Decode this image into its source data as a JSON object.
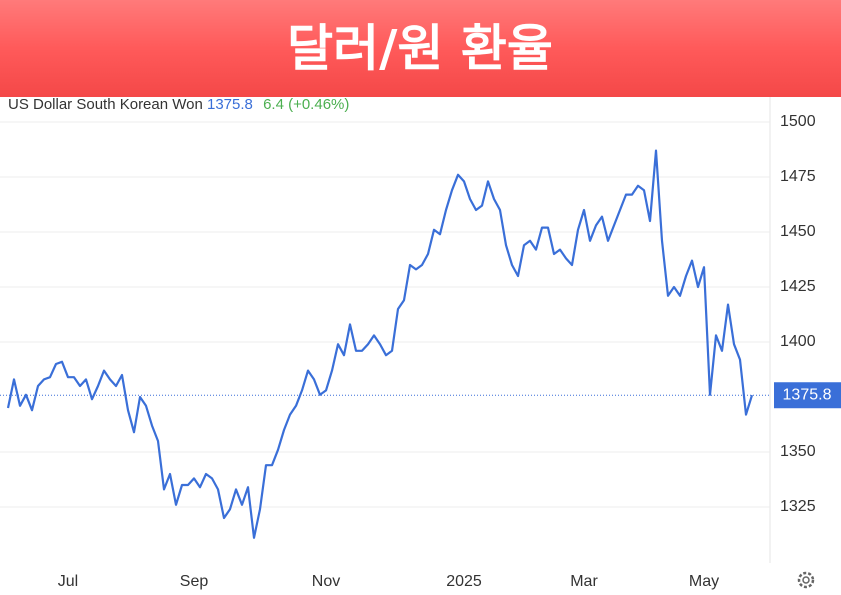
{
  "chart_data": {
    "type": "line",
    "title": "달러/원 환율",
    "last_value": 1375.8,
    "change_label": "6.4 (+0.46%)",
    "categories": [
      null,
      null,
      null,
      null,
      null,
      null,
      null,
      null,
      null,
      null,
      "Jul",
      null,
      null,
      null,
      null,
      null,
      null,
      null,
      null,
      null,
      null,
      null,
      null,
      null,
      null,
      null,
      null,
      null,
      null,
      null,
      null,
      "Sep",
      null,
      null,
      null,
      null,
      null,
      null,
      null,
      null,
      null,
      null,
      null,
      null,
      null,
      null,
      null,
      null,
      null,
      null,
      null,
      null,
      null,
      "Nov",
      null,
      null,
      null,
      null,
      null,
      null,
      null,
      null,
      null,
      null,
      null,
      null,
      null,
      null,
      null,
      null,
      null,
      null,
      null,
      null,
      null,
      null,
      "2025",
      null,
      null,
      null,
      null,
      null,
      null,
      null,
      null,
      null,
      null,
      null,
      null,
      null,
      null,
      null,
      null,
      null,
      null,
      null,
      "Mar",
      null,
      null,
      null,
      null,
      null,
      null,
      null,
      null,
      null,
      null,
      null,
      null,
      null,
      null,
      null,
      null,
      null,
      null,
      null,
      "May",
      null,
      null,
      null,
      null,
      null,
      null,
      null,
      null
    ],
    "series": [
      {
        "name": "US Dollar South Korean Won",
        "color": "#3a6fd8",
        "values": [
          1370,
          1383,
          1371,
          1376,
          1369,
          1380,
          1383,
          1384,
          1390,
          1391,
          1384,
          1384,
          1380,
          1383,
          1374,
          1380,
          1387,
          1383,
          1380,
          1385,
          1369,
          1359,
          1375,
          1371,
          1362,
          1355,
          1333,
          1340,
          1326,
          1335,
          1335,
          1338,
          1334,
          1340,
          1338,
          1333,
          1320,
          1324,
          1333,
          1326,
          1334,
          1311,
          1324,
          1344,
          1344,
          1351,
          1360,
          1367,
          1371,
          1378,
          1387,
          1383,
          1376,
          1378,
          1387,
          1399,
          1394,
          1408,
          1396,
          1396,
          1399,
          1403,
          1399,
          1394,
          1396,
          1415,
          1419,
          1435,
          1433,
          1435,
          1440,
          1451,
          1449,
          1460,
          1469,
          1476,
          1473,
          1465,
          1460,
          1462,
          1473,
          1465,
          1460,
          1444,
          1435,
          1430,
          1444,
          1446,
          1442,
          1452,
          1452,
          1440,
          1442,
          1438,
          1435,
          1451,
          1460,
          1446,
          1453,
          1457,
          1446,
          1453,
          1460,
          1467,
          1467,
          1471,
          1469,
          1455,
          1487,
          1446,
          1421,
          1425,
          1421,
          1430,
          1437,
          1425,
          1434,
          1376,
          1403,
          1396,
          1417,
          1399,
          1392,
          1367,
          1375.8
        ]
      }
    ],
    "ylim": [
      1300,
      1510
    ],
    "yticks": [
      1325,
      1350,
      1400,
      1425,
      1450,
      1475,
      1500
    ],
    "grid": true
  }
}
